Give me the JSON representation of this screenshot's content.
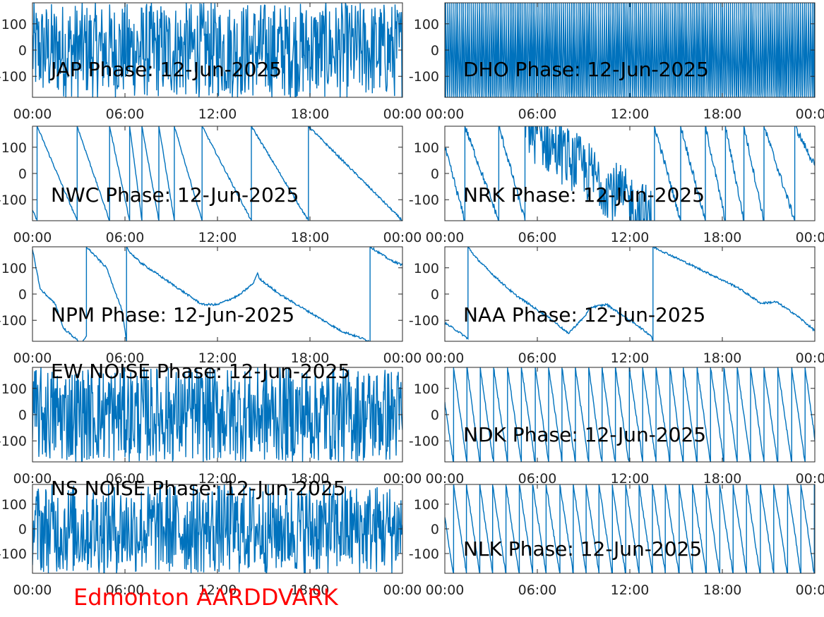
{
  "figure": {
    "station_label": "Edmonton AARDDVARK",
    "line_color": "#0072bd",
    "label_color": "#ff0000"
  },
  "chart_data": [
    {
      "type": "line",
      "title": "JAP Phase: 12-Jun-2025",
      "xticks": [
        "00:00",
        "06:00",
        "12:00",
        "18:00",
        "00:00"
      ],
      "yticks": [
        "100",
        "0",
        "-100"
      ],
      "ylim": [
        -180,
        180
      ],
      "xlim": [
        0,
        24
      ],
      "series": [
        {
          "pattern": "noise",
          "x": [
            0,
            24
          ],
          "y": [
            -180,
            180
          ]
        }
      ]
    },
    {
      "type": "line",
      "title": "DHO Phase: 12-Jun-2025",
      "xticks": [
        "00:00",
        "06:00",
        "12:00",
        "18:00",
        "00:00"
      ],
      "yticks": [
        "100",
        "0",
        "-100"
      ],
      "ylim": [
        -180,
        180
      ],
      "xlim": [
        0,
        24
      ],
      "series": [
        {
          "pattern": "fast-wrap",
          "x": [
            0,
            24
          ],
          "y": [
            -180,
            180
          ]
        }
      ]
    },
    {
      "type": "line",
      "title": "NWC Phase: 12-Jun-2025",
      "xticks": [
        "00:00",
        "06:00",
        "12:00",
        "18:00",
        "00:00"
      ],
      "yticks": [
        "100",
        "0",
        "-100"
      ],
      "ylim": [
        -180,
        180
      ],
      "xlim": [
        0,
        24
      ],
      "series": [
        {
          "pattern": "wrap",
          "x": [
            0.0,
            0.3,
            0.3,
            2.9,
            2.9,
            5.0,
            5.0,
            6.3,
            6.3,
            7.1,
            7.1,
            8.2,
            8.2,
            9.2,
            9.2,
            11.0,
            11.0,
            14.2,
            14.2,
            17.9,
            17.9,
            24.0
          ],
          "y": [
            -140,
            -180,
            180,
            -180,
            180,
            -180,
            180,
            -180,
            180,
            -180,
            180,
            -180,
            180,
            -180,
            180,
            -180,
            180,
            -180,
            180,
            -180,
            180,
            -180
          ]
        }
      ]
    },
    {
      "type": "line",
      "title": "NRK Phase: 12-Jun-2025",
      "xticks": [
        "00:00",
        "06:00",
        "12:00",
        "18:00",
        "00:00"
      ],
      "yticks": [
        "100",
        "0",
        "-100"
      ],
      "ylim": [
        -180,
        180
      ],
      "xlim": [
        0,
        24
      ],
      "series": [
        {
          "pattern": "wrap-noisy",
          "x": [
            0,
            1.3,
            1.3,
            3.5,
            3.5,
            5.2,
            5.2,
            13.6,
            13.6,
            15.3,
            15.3,
            16.9,
            16.9,
            18.2,
            18.2,
            19.4,
            19.4,
            20.7,
            20.7,
            22.7,
            22.7,
            24
          ],
          "y": [
            100,
            -180,
            180,
            -180,
            180,
            -180,
            180,
            -180,
            180,
            -180,
            180,
            -180,
            180,
            -180,
            180,
            -180,
            180,
            -180,
            180,
            -180,
            180,
            30
          ]
        }
      ]
    },
    {
      "type": "line",
      "title": "NPM Phase: 12-Jun-2025",
      "xticks": [
        "00:00",
        "06:00",
        "12:00",
        "18:00",
        "00:00"
      ],
      "yticks": [
        "100",
        "0",
        "-100"
      ],
      "ylim": [
        -180,
        180
      ],
      "xlim": [
        0,
        24
      ],
      "series": [
        {
          "pattern": "trace",
          "x": [
            0,
            0.5,
            1.0,
            1.5,
            2.0,
            3.2,
            3.5,
            3.5,
            4.8,
            5.8,
            6.1,
            6.1,
            6.3,
            7.0,
            9.0,
            11.0,
            12.0,
            13.4,
            14.3,
            14.6,
            14.7,
            16.0,
            18.0,
            20.0,
            21.9,
            21.9,
            23.2,
            24.0
          ],
          "y": [
            170,
            20,
            -10,
            -40,
            -130,
            -190,
            -160,
            180,
            100,
            -60,
            -180,
            180,
            160,
            120,
            40,
            -40,
            -40,
            -5,
            40,
            80,
            60,
            0,
            -70,
            -140,
            -180,
            180,
            130,
            110
          ]
        }
      ]
    },
    {
      "type": "line",
      "title": "NAA Phase: 12-Jun-2025",
      "xticks": [
        "00:00",
        "06:00",
        "12:00",
        "18:00",
        "00:00"
      ],
      "yticks": [
        "100",
        "0",
        "-100"
      ],
      "ylim": [
        -180,
        180
      ],
      "xlim": [
        0,
        24
      ],
      "series": [
        {
          "pattern": "trace",
          "x": [
            0,
            0.8,
            1.5,
            1.5,
            2.0,
            3.0,
            4.5,
            6.0,
            7.0,
            8.0,
            9.0,
            9.5,
            10.5,
            11.5,
            12.5,
            13.4,
            13.5,
            13.5,
            16.0,
            19.0,
            20.5,
            21.5,
            22.8,
            24.0
          ],
          "y": [
            -110,
            -140,
            -170,
            180,
            140,
            80,
            0,
            -60,
            -100,
            -150,
            -90,
            -50,
            -40,
            -80,
            -120,
            -160,
            -180,
            180,
            110,
            25,
            -35,
            -30,
            -80,
            -140
          ]
        }
      ]
    },
    {
      "type": "line",
      "title": "EW NOISE Phase: 12-Jun-2025",
      "xticks": [
        "00:00",
        "06:00",
        "12:00",
        "18:00",
        "00:00"
      ],
      "yticks": [
        "100",
        "0",
        "-100"
      ],
      "ylim": [
        -180,
        180
      ],
      "xlim": [
        0,
        24
      ],
      "series": [
        {
          "pattern": "noise",
          "x": [
            0,
            24
          ],
          "y": [
            -180,
            180
          ]
        }
      ]
    },
    {
      "type": "line",
      "title": "NDK Phase: 12-Jun-2025",
      "xticks": [
        "00:00",
        "06:00",
        "12:00",
        "18:00",
        "00:00"
      ],
      "yticks": [
        "100",
        "0",
        "-100"
      ],
      "ylim": [
        -180,
        180
      ],
      "xlim": [
        0,
        24
      ],
      "series": [
        {
          "pattern": "fast-wrap-sparse",
          "x": [
            0,
            24
          ],
          "y": [
            -180,
            180
          ]
        }
      ]
    },
    {
      "type": "line",
      "title": "NS NOISE Phase: 12-Jun-2025",
      "xticks": [
        "00:00",
        "06:00",
        "12:00",
        "18:00",
        "00:00"
      ],
      "yticks": [
        "100",
        "0",
        "-100"
      ],
      "ylim": [
        -180,
        180
      ],
      "xlim": [
        0,
        24
      ],
      "series": [
        {
          "pattern": "noise",
          "x": [
            0,
            24
          ],
          "y": [
            -180,
            180
          ]
        }
      ]
    },
    {
      "type": "line",
      "title": "NLK Phase: 12-Jun-2025",
      "xticks": [
        "00:00",
        "06:00",
        "12:00",
        "18:00",
        "00:00"
      ],
      "yticks": [
        "100",
        "0",
        "-100"
      ],
      "ylim": [
        -180,
        180
      ],
      "xlim": [
        0,
        24
      ],
      "series": [
        {
          "pattern": "fast-wrap-sparse",
          "x": [
            0,
            24
          ],
          "y": [
            -180,
            180
          ]
        }
      ]
    }
  ]
}
